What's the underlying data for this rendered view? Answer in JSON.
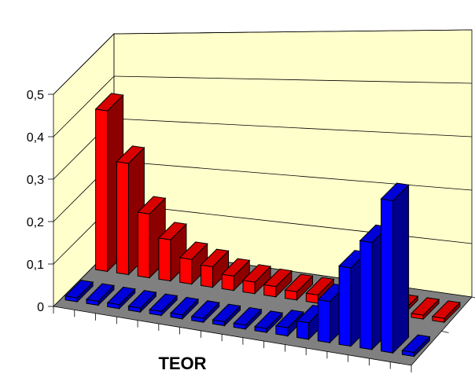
{
  "chart_data": {
    "type": "bar",
    "style": "3d-column",
    "xlabel": "TEOR",
    "ylim": [
      0,
      0.5
    ],
    "yticks": [
      "0",
      "0,1",
      "0,2",
      "0,3",
      "0,4",
      "0,5"
    ],
    "ytick_values": [
      0,
      0.1,
      0.2,
      0.3,
      0.4,
      0.5
    ],
    "grid": true,
    "n_categories": 17,
    "series": [
      {
        "color": "#ff0000",
        "values": [
          0.39,
          0.27,
          0.155,
          0.1,
          0.06,
          0.05,
          0.035,
          0.028,
          0.025,
          0.02,
          0.02,
          0.0,
          0.0,
          0.0,
          0.0,
          0.0,
          0.0
        ]
      },
      {
        "color": "#0000ff",
        "values": [
          0.0,
          0.0,
          0.0,
          0.0,
          0.0,
          0.0,
          0.0,
          0.0,
          0.0,
          0.0,
          0.02,
          0.04,
          0.1,
          0.19,
          0.26,
          0.37,
          0.0
        ]
      }
    ],
    "colors": {
      "back_wall": "#ffffcc",
      "floor": "#808080",
      "grid": "#000000"
    }
  }
}
